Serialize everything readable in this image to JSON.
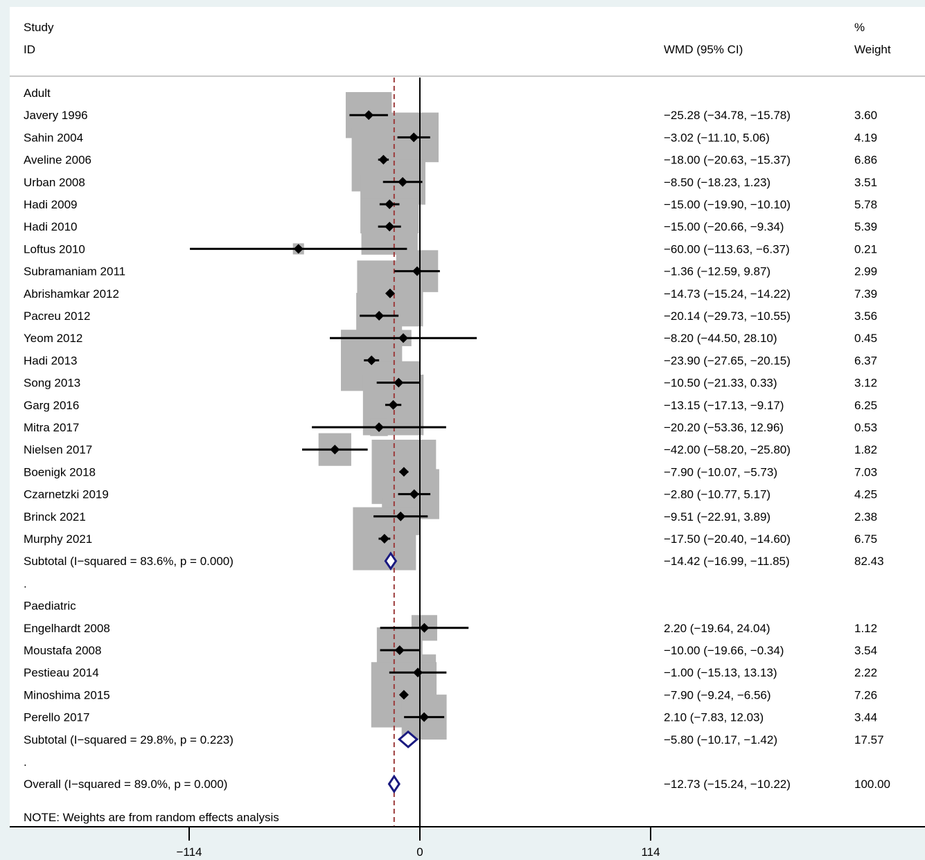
{
  "chart_data": {
    "type": "forest",
    "header": {
      "study_line1": "Study",
      "study_line2": "ID",
      "effect_label": "WMD (95% CI)",
      "weight_line1": "%",
      "weight_line2": "Weight"
    },
    "x_ticks": [
      {
        "value": -114,
        "label": "−114"
      },
      {
        "value": 0,
        "label": "0"
      },
      {
        "value": 114,
        "label": "114"
      }
    ],
    "xlim": [
      -114,
      114
    ],
    "null_line": 0,
    "overall_line": -12.73,
    "note": "NOTE: Weights are from random effects analysis",
    "rows": [
      {
        "kind": "group",
        "label": "Adult"
      },
      {
        "kind": "study",
        "label": "Javery 1996",
        "est": -25.28,
        "lo": -34.78,
        "hi": -15.78,
        "ci_text": "−25.28 (−34.78, −15.78)",
        "weight": 3.6,
        "weight_text": "3.60"
      },
      {
        "kind": "study",
        "label": "Sahin 2004",
        "est": -3.02,
        "lo": -11.1,
        "hi": 5.06,
        "ci_text": "−3.02 (−11.10, 5.06)",
        "weight": 4.19,
        "weight_text": "4.19"
      },
      {
        "kind": "study",
        "label": "Aveline 2006",
        "est": -18.0,
        "lo": -20.63,
        "hi": -15.37,
        "ci_text": "−18.00 (−20.63, −15.37)",
        "weight": 6.86,
        "weight_text": "6.86"
      },
      {
        "kind": "study",
        "label": "Urban 2008",
        "est": -8.5,
        "lo": -18.23,
        "hi": 1.23,
        "ci_text": "−8.50 (−18.23, 1.23)",
        "weight": 3.51,
        "weight_text": "3.51"
      },
      {
        "kind": "study",
        "label": "Hadi 2009",
        "est": -15.0,
        "lo": -19.9,
        "hi": -10.1,
        "ci_text": "−15.00 (−19.90, −10.10)",
        "weight": 5.78,
        "weight_text": "5.78"
      },
      {
        "kind": "study",
        "label": "Hadi 2010",
        "est": -15.0,
        "lo": -20.66,
        "hi": -9.34,
        "ci_text": "−15.00 (−20.66, −9.34)",
        "weight": 5.39,
        "weight_text": "5.39"
      },
      {
        "kind": "study",
        "label": "Loftus 2010",
        "est": -60.0,
        "lo": -113.63,
        "hi": -6.37,
        "ci_text": "−60.00 (−113.63, −6.37)",
        "weight": 0.21,
        "weight_text": "0.21"
      },
      {
        "kind": "study",
        "label": "Subramaniam 2011",
        "est": -1.36,
        "lo": -12.59,
        "hi": 9.87,
        "ci_text": "−1.36 (−12.59, 9.87)",
        "weight": 2.99,
        "weight_text": "2.99"
      },
      {
        "kind": "study",
        "label": "Abrishamkar 2012",
        "est": -14.73,
        "lo": -15.24,
        "hi": -14.22,
        "ci_text": "−14.73 (−15.24, −14.22)",
        "weight": 7.39,
        "weight_text": "7.39"
      },
      {
        "kind": "study",
        "label": "Pacreu 2012",
        "est": -20.14,
        "lo": -29.73,
        "hi": -10.55,
        "ci_text": "−20.14 (−29.73, −10.55)",
        "weight": 3.56,
        "weight_text": "3.56"
      },
      {
        "kind": "study",
        "label": "Yeom 2012",
        "est": -8.2,
        "lo": -44.5,
        "hi": 28.1,
        "ci_text": "−8.20 (−44.50, 28.10)",
        "weight": 0.45,
        "weight_text": "0.45"
      },
      {
        "kind": "study",
        "label": "Hadi 2013",
        "est": -23.9,
        "lo": -27.65,
        "hi": -20.15,
        "ci_text": "−23.90 (−27.65, −20.15)",
        "weight": 6.37,
        "weight_text": "6.37"
      },
      {
        "kind": "study",
        "label": "Song 2013",
        "est": -10.5,
        "lo": -21.33,
        "hi": 0.33,
        "ci_text": "−10.50 (−21.33, 0.33)",
        "weight": 3.12,
        "weight_text": "3.12"
      },
      {
        "kind": "study",
        "label": "Garg 2016",
        "est": -13.15,
        "lo": -17.13,
        "hi": -9.17,
        "ci_text": "−13.15 (−17.13, −9.17)",
        "weight": 6.25,
        "weight_text": "6.25"
      },
      {
        "kind": "study",
        "label": "Mitra 2017",
        "est": -20.2,
        "lo": -53.36,
        "hi": 12.96,
        "ci_text": "−20.20 (−53.36, 12.96)",
        "weight": 0.53,
        "weight_text": "0.53"
      },
      {
        "kind": "study",
        "label": "Nielsen 2017",
        "est": -42.0,
        "lo": -58.2,
        "hi": -25.8,
        "ci_text": "−42.00 (−58.20, −25.80)",
        "weight": 1.82,
        "weight_text": "1.82"
      },
      {
        "kind": "study",
        "label": "Boenigk 2018",
        "est": -7.9,
        "lo": -10.07,
        "hi": -5.73,
        "ci_text": "−7.90 (−10.07, −5.73)",
        "weight": 7.03,
        "weight_text": "7.03"
      },
      {
        "kind": "study",
        "label": "Czarnetzki 2019",
        "est": -2.8,
        "lo": -10.77,
        "hi": 5.17,
        "ci_text": "−2.80 (−10.77, 5.17)",
        "weight": 4.25,
        "weight_text": "4.25"
      },
      {
        "kind": "study",
        "label": "Brinck 2021",
        "est": -9.51,
        "lo": -22.91,
        "hi": 3.89,
        "ci_text": "−9.51 (−22.91, 3.89)",
        "weight": 2.38,
        "weight_text": "2.38"
      },
      {
        "kind": "study",
        "label": "Murphy 2021",
        "est": -17.5,
        "lo": -20.4,
        "hi": -14.6,
        "ci_text": "−17.50 (−20.40, −14.60)",
        "weight": 6.75,
        "weight_text": "6.75"
      },
      {
        "kind": "subtotal",
        "label": "Subtotal  (I−squared = 83.6%, p = 0.000)",
        "est": -14.42,
        "lo": -16.99,
        "hi": -11.85,
        "ci_text": "−14.42 (−16.99, −11.85)",
        "weight": 82.43,
        "weight_text": "82.43"
      },
      {
        "kind": "spacer",
        "label": "."
      },
      {
        "kind": "group",
        "label": "Paediatric"
      },
      {
        "kind": "study",
        "label": "Engelhardt 2008",
        "est": 2.2,
        "lo": -19.64,
        "hi": 24.04,
        "ci_text": "2.20 (−19.64, 24.04)",
        "weight": 1.12,
        "weight_text": "1.12"
      },
      {
        "kind": "study",
        "label": "Moustafa 2008",
        "est": -10.0,
        "lo": -19.66,
        "hi": -0.34,
        "ci_text": "−10.00 (−19.66, −0.34)",
        "weight": 3.54,
        "weight_text": "3.54"
      },
      {
        "kind": "study",
        "label": "Pestieau 2014",
        "est": -1.0,
        "lo": -15.13,
        "hi": 13.13,
        "ci_text": "−1.00 (−15.13, 13.13)",
        "weight": 2.22,
        "weight_text": "2.22"
      },
      {
        "kind": "study",
        "label": "Minoshima 2015",
        "est": -7.9,
        "lo": -9.24,
        "hi": -6.56,
        "ci_text": "−7.90 (−9.24, −6.56)",
        "weight": 7.26,
        "weight_text": "7.26"
      },
      {
        "kind": "study",
        "label": "Perello 2017",
        "est": 2.1,
        "lo": -7.83,
        "hi": 12.03,
        "ci_text": "2.10 (−7.83, 12.03)",
        "weight": 3.44,
        "weight_text": "3.44"
      },
      {
        "kind": "subtotal",
        "label": "Subtotal  (I−squared = 29.8%, p = 0.223)",
        "est": -5.8,
        "lo": -10.17,
        "hi": -1.42,
        "ci_text": "−5.80 (−10.17, −1.42)",
        "weight": 17.57,
        "weight_text": "17.57"
      },
      {
        "kind": "spacer",
        "label": "."
      },
      {
        "kind": "overall",
        "label": "Overall  (I−squared = 89.0%, p = 0.000)",
        "est": -12.73,
        "lo": -15.24,
        "hi": -10.22,
        "ci_text": "−12.73 (−15.24, −10.22)",
        "weight": 100.0,
        "weight_text": "100.00"
      }
    ],
    "colors": {
      "background": "#eaf2f3",
      "plot_region": "#ffffff",
      "weight_box": "#b3b3b3",
      "point": "#000000",
      "summary_diamond": "#1a1a80",
      "overall_line": "#9b3a3a",
      "axis": "#000000"
    }
  }
}
